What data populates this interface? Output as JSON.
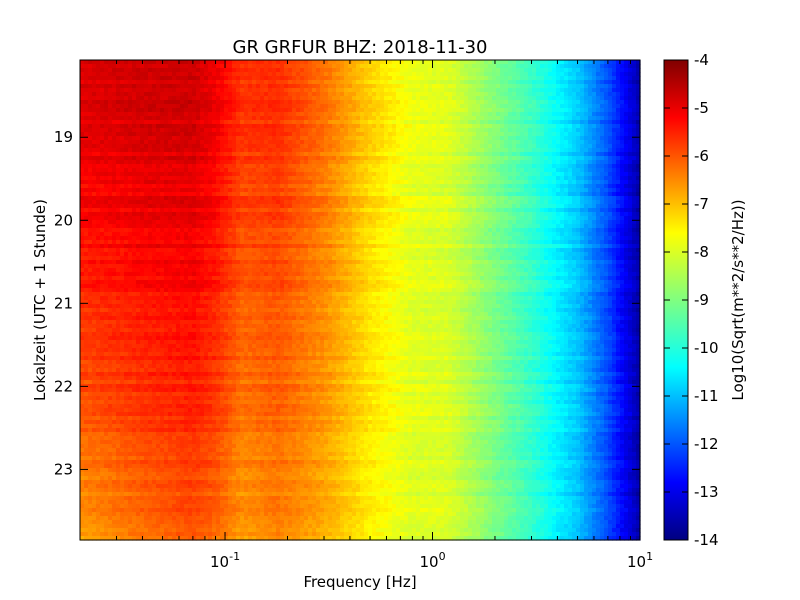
{
  "chart_data": {
    "type": "heatmap",
    "title": "GR GRFUR BHZ: 2018-11-30",
    "xlabel": "Frequency [Hz]",
    "ylabel": "Lokalzeit (UTC + 1 Stunde)",
    "x_scale": "log",
    "xlim": [
      0.02,
      10
    ],
    "x_ticks": [
      {
        "value": 0.1,
        "base": "10",
        "exp": "-1"
      },
      {
        "value": 1,
        "base": "10",
        "exp": "0"
      },
      {
        "value": 10,
        "base": "10",
        "exp": "1"
      }
    ],
    "ylim": [
      18.07,
      23.85
    ],
    "y_inverted": true,
    "y_ticks": [
      {
        "value": 19,
        "label": "19"
      },
      {
        "value": 20,
        "label": "20"
      },
      {
        "value": 21,
        "label": "21"
      },
      {
        "value": 22,
        "label": "22"
      },
      {
        "value": 23,
        "label": "23"
      }
    ],
    "colorbar": {
      "label": "Log10(Sqrt(m**2/s**2/Hz))",
      "colormap": "jet",
      "range": [
        -14,
        -4
      ],
      "ticks": [
        "-4",
        "-5",
        "-6",
        "-7",
        "-8",
        "-9",
        "-10",
        "-11",
        "-12",
        "-13",
        "-14"
      ]
    },
    "frequency_profile": [
      {
        "f": 0.02,
        "v": -5.4
      },
      {
        "f": 0.04,
        "v": -5.2
      },
      {
        "f": 0.07,
        "v": -5.1
      },
      {
        "f": 0.09,
        "v": -5.4
      },
      {
        "f": 0.12,
        "v": -6.0
      },
      {
        "f": 0.18,
        "v": -5.9
      },
      {
        "f": 0.3,
        "v": -6.5
      },
      {
        "f": 0.5,
        "v": -7.4
      },
      {
        "f": 0.8,
        "v": -8.0
      },
      {
        "f": 1.2,
        "v": -8.1
      },
      {
        "f": 2.0,
        "v": -9.0
      },
      {
        "f": 3.0,
        "v": -9.7
      },
      {
        "f": 5.0,
        "v": -10.8
      },
      {
        "f": 7.0,
        "v": -12.0
      },
      {
        "f": 10.0,
        "v": -13.6
      }
    ],
    "time_trend": [
      {
        "t": 18.07,
        "offset": 0.5
      },
      {
        "t": 20.0,
        "offset": 0.1
      },
      {
        "t": 22.0,
        "offset": -0.6
      },
      {
        "t": 23.85,
        "offset": -1.4
      }
    ]
  }
}
